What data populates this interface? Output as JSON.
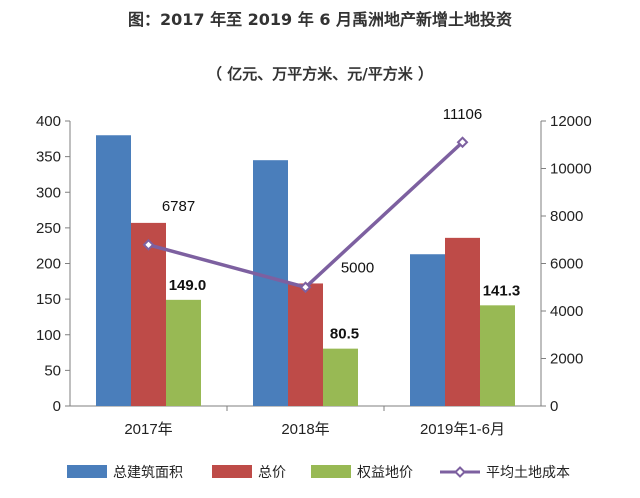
{
  "chart_data": {
    "type": "bar",
    "title": "图：2017 年至 2019 年 6 月禹洲地产新增土地投资",
    "subtitle": "（ 亿元、万平方米、元/平方米 ）",
    "categories": [
      "2017年",
      "2018年",
      "2019年1-6月"
    ],
    "series": [
      {
        "name": "总建筑面积",
        "kind": "bar",
        "axis": "left",
        "color": "#4a7ebb",
        "values": [
          380,
          345,
          213
        ]
      },
      {
        "name": "总价",
        "kind": "bar",
        "axis": "left",
        "color": "#be4b48",
        "values": [
          257,
          172,
          236
        ]
      },
      {
        "name": "权益地价",
        "kind": "bar",
        "axis": "left",
        "color": "#98b954",
        "values": [
          149.0,
          80.5,
          141.3
        ]
      },
      {
        "name": "平均土地成本",
        "kind": "line",
        "axis": "right",
        "color": "#7d60a0",
        "values": [
          6787,
          5000,
          11106
        ]
      }
    ],
    "data_labels": {
      "bar_labels": [
        "149.0",
        "80.5",
        "141.3"
      ],
      "line_labels": [
        "6787",
        "5000",
        "11106"
      ]
    },
    "y_left": {
      "min": 0,
      "max": 400,
      "ticks": [
        "0",
        "50",
        "100",
        "150",
        "200",
        "250",
        "300",
        "350",
        "400"
      ]
    },
    "y_right": {
      "min": 0,
      "max": 12000,
      "ticks": [
        "0",
        "2000",
        "4000",
        "6000",
        "8000",
        "10000",
        "12000"
      ]
    },
    "legend_position": "bottom",
    "grid": false
  }
}
